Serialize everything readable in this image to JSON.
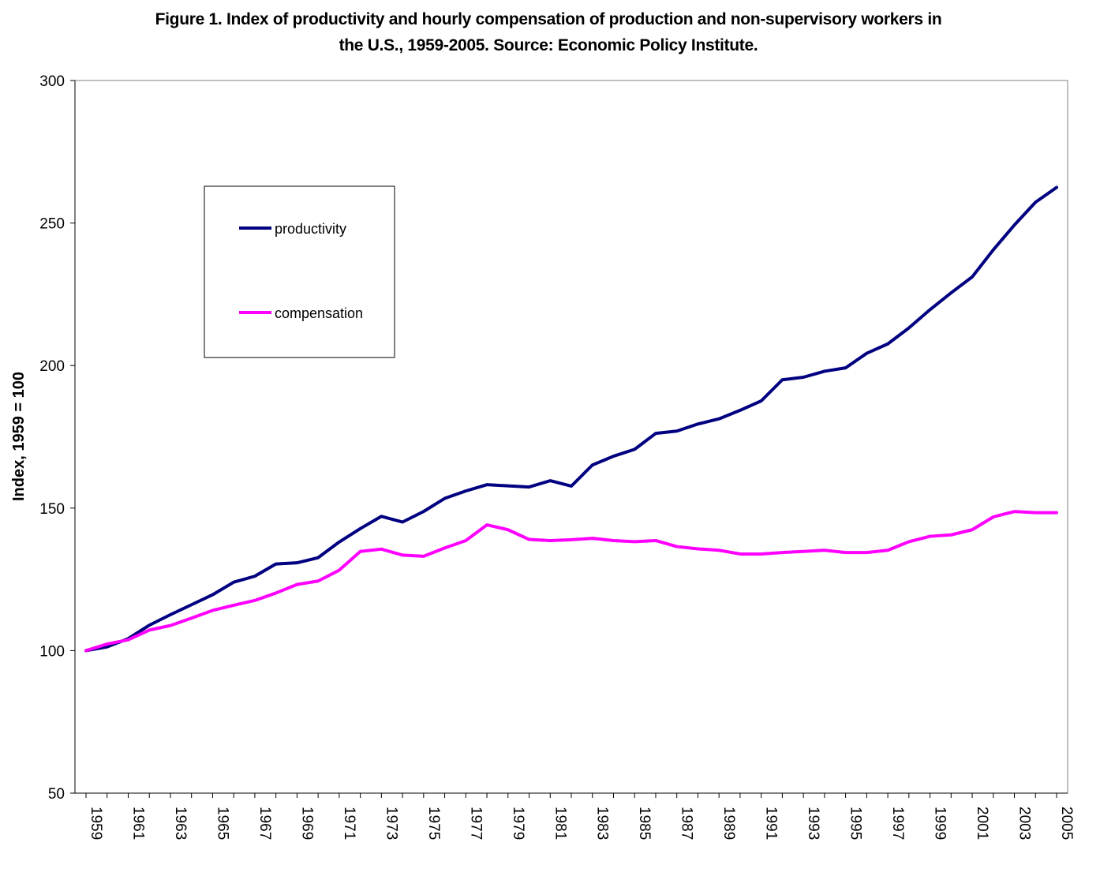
{
  "chart_data": {
    "type": "line",
    "title_line1": "Figure 1. Index of productivity and hourly compensation of production and non-supervisory workers in",
    "title_line2": "the U.S., 1959-2005. Source: Economic Policy Institute.",
    "xlabel": "",
    "ylabel": "Index, 1959 = 100",
    "ylim": [
      50,
      300
    ],
    "yticks": [
      50,
      100,
      150,
      200,
      250,
      300
    ],
    "x": [
      1959,
      1960,
      1961,
      1962,
      1963,
      1964,
      1965,
      1966,
      1967,
      1968,
      1969,
      1970,
      1971,
      1972,
      1973,
      1974,
      1975,
      1976,
      1977,
      1978,
      1979,
      1980,
      1981,
      1982,
      1983,
      1984,
      1985,
      1986,
      1987,
      1988,
      1989,
      1990,
      1991,
      1992,
      1993,
      1994,
      1995,
      1996,
      1997,
      1998,
      1999,
      2000,
      2001,
      2002,
      2003,
      2004,
      2005
    ],
    "xtick_labels": [
      "1959",
      "1961",
      "1963",
      "1965",
      "1967",
      "1969",
      "1971",
      "1973",
      "1975",
      "1977",
      "1979",
      "1981",
      "1983",
      "1985",
      "1987",
      "1989",
      "1991",
      "1993",
      "1995",
      "1997",
      "1999",
      "2001",
      "2003",
      "2005"
    ],
    "grid": false,
    "legend_position": "upper-left",
    "series": [
      {
        "name": "productivity",
        "color": "#000080",
        "values": [
          100,
          101.3,
          104.2,
          108.9,
          112.6,
          116.1,
          119.6,
          124.0,
          126.1,
          130.4,
          130.8,
          132.6,
          138.1,
          142.8,
          147.1,
          145.1,
          148.8,
          153.4,
          156.0,
          158.2,
          157.8,
          157.4,
          159.6,
          157.7,
          165.1,
          168.2,
          170.6,
          176.2,
          177.0,
          179.5,
          181.3,
          184.3,
          187.6,
          195.0,
          195.9,
          198.0,
          199.2,
          204.3,
          207.6,
          213.2,
          219.6,
          225.5,
          231.1,
          240.6,
          249.3,
          257.3,
          262.5
        ]
      },
      {
        "name": "compensation",
        "color": "#FF00FF",
        "values": [
          100,
          102.3,
          103.8,
          107.2,
          108.8,
          111.4,
          114.1,
          115.9,
          117.6,
          120.2,
          123.2,
          124.4,
          128.2,
          134.8,
          135.6,
          133.5,
          133.1,
          136.0,
          138.6,
          144.1,
          142.4,
          139.0,
          138.6,
          138.9,
          139.4,
          138.6,
          138.2,
          138.6,
          136.5,
          135.7,
          135.2,
          133.9,
          133.9,
          134.4,
          134.8,
          135.2,
          134.4,
          134.4,
          135.2,
          138.2,
          140.1,
          140.6,
          142.4,
          146.9,
          148.8,
          148.4,
          148.4
        ]
      }
    ]
  }
}
